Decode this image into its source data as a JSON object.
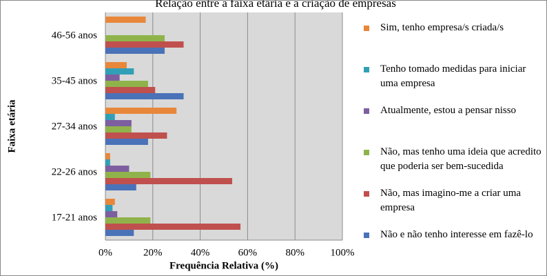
{
  "chart_data": {
    "type": "bar",
    "orientation": "horizontal",
    "title": "Relação entre a faixa etária e a criação de empresas",
    "x_label": "Frequência Relativa (%)",
    "y_label": "Faixa etária",
    "categories": [
      "46-56 anos",
      "35-45 anos",
      "27-34 anos",
      "22-26 anos",
      "17-21 anos"
    ],
    "series": [
      {
        "name": "Sim, tenho empresa/s criada/s",
        "color": "#e8873a",
        "values": [
          17,
          9,
          30,
          2,
          4
        ]
      },
      {
        "name": "Tenho tomado medidas para iniciar uma empresa",
        "color": "#31a0b7",
        "values": [
          0,
          12,
          4,
          2,
          3
        ]
      },
      {
        "name": "Atualmente, estou a pensar nisso",
        "color": "#7d5fa0",
        "values": [
          0,
          6,
          11,
          10,
          5
        ]
      },
      {
        "name": "Não, mas tenho uma ideia que acredito que poderia ser bem-sucedida",
        "color": "#8fb34a",
        "values": [
          25,
          18,
          11,
          19,
          19
        ]
      },
      {
        "name": "Não, mas imagino-me a criar uma empresa",
        "color": "#c0504d",
        "values": [
          33,
          21,
          26,
          53.5,
          57
        ]
      },
      {
        "name": "Não e não tenho interesse em fazê-lo",
        "color": "#4a72b8",
        "values": [
          25,
          33,
          18,
          13,
          12
        ]
      }
    ],
    "xlim": [
      0,
      100
    ],
    "xticks": [
      {
        "value": 0,
        "label": "0%"
      },
      {
        "value": 20,
        "label": "20%"
      },
      {
        "value": 40,
        "label": "40%"
      },
      {
        "value": 60,
        "label": "60%"
      },
      {
        "value": 80,
        "label": "80%"
      },
      {
        "value": 100,
        "label": "100%"
      }
    ],
    "grid": true,
    "legend": "right"
  }
}
